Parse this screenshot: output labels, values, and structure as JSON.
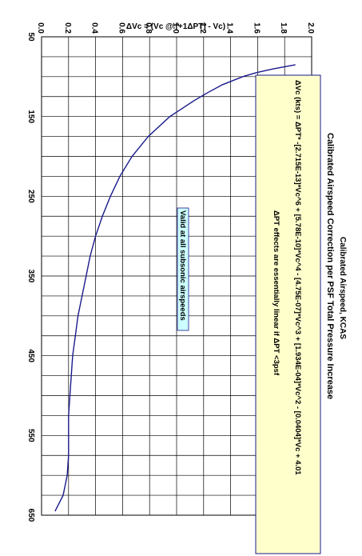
{
  "chart_data": {
    "type": "line",
    "title": "Calibrated Airspeed Correction per PSF Total Pressure Increase",
    "xlabel": "Calibrated Airspeed, KCAS",
    "ylabel": "ΔVc = (Vc @ [+1ΔPT] - Vc)",
    "xlim": [
      50,
      650
    ],
    "ylim": [
      0,
      2.0
    ],
    "x_ticks": [
      "50",
      "150",
      "250",
      "350",
      "450",
      "550",
      "650"
    ],
    "y_ticks": [
      "0.0",
      "0.2",
      "0.4",
      "0.6",
      "0.8",
      "1.0",
      "1.2",
      "1.4",
      "1.6",
      "1.8",
      "2.0"
    ],
    "grid": true,
    "series": [
      {
        "x": [
          85,
          90,
          95,
          100,
          110,
          120,
          130,
          140,
          150,
          175,
          200,
          225,
          250,
          275,
          300,
          325,
          350,
          375,
          400,
          425,
          450,
          475,
          500,
          525,
          550,
          575,
          600,
          625,
          645
        ],
        "y": [
          1.88,
          1.72,
          1.59,
          1.49,
          1.34,
          1.23,
          1.13,
          1.04,
          0.95,
          0.79,
          0.67,
          0.58,
          0.51,
          0.45,
          0.4,
          0.36,
          0.33,
          0.3,
          0.27,
          0.25,
          0.23,
          0.22,
          0.21,
          0.2,
          0.2,
          0.2,
          0.19,
          0.16,
          0.1
        ]
      }
    ],
    "annotations": {
      "equation": "ΔVc (kts) = ΔPT* -[2.715E-13]*Vc^6 + [5.78E-10]*Vc^4 - [4.75E-07]*Vc^3 + [1.934E-04]*Vc^2 - [0.0404]*Vc + 4.01",
      "linearity_note": "ΔPT effects are essentially linear if  ΔPT <3psf",
      "validity_note": "Valid at all subsonic airspeeds"
    }
  },
  "colors": {
    "curve": "#1a1a8c",
    "note_fill": "#ffffcc",
    "note_border": "#1a1a8c",
    "label_fill": "#ccffff"
  }
}
